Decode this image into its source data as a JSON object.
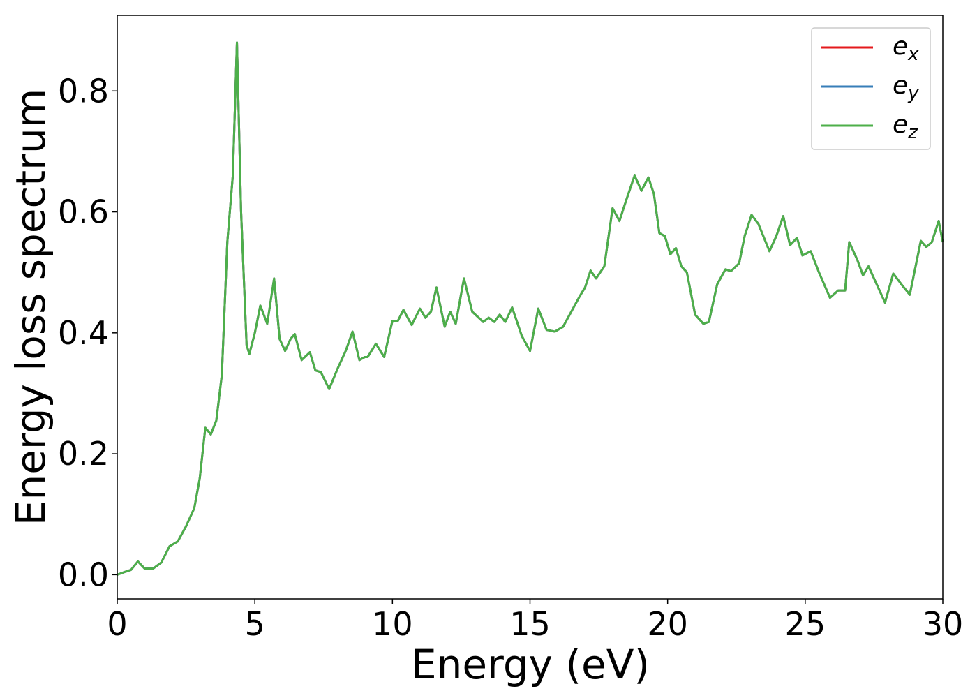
{
  "chart_data": {
    "type": "line",
    "xlabel": "Energy (eV)",
    "ylabel": "Energy loss spectrum",
    "xlim": [
      0,
      30
    ],
    "ylim": [
      -0.04,
      0.925
    ],
    "xticks": [
      0,
      5,
      10,
      15,
      20,
      25,
      30
    ],
    "yticks": [
      {
        "value": 0,
        "label": "0.0"
      },
      0.2,
      0.4,
      0.6,
      0.8
    ],
    "legend": "upper right",
    "x": [
      0,
      0.3,
      0.5,
      0.75,
      1.0,
      1.3,
      1.6,
      1.9,
      2.2,
      2.5,
      2.8,
      3.0,
      3.2,
      3.4,
      3.6,
      3.8,
      4.0,
      4.2,
      4.35,
      4.5,
      4.7,
      4.8,
      5.0,
      5.2,
      5.45,
      5.7,
      5.9,
      6.1,
      6.3,
      6.45,
      6.7,
      7.0,
      7.2,
      7.4,
      7.7,
      8.0,
      8.3,
      8.55,
      8.8,
      9.0,
      9.1,
      9.4,
      9.7,
      10.0,
      10.2,
      10.4,
      10.7,
      11.0,
      11.2,
      11.4,
      11.6,
      11.9,
      12.1,
      12.3,
      12.6,
      12.9,
      13.3,
      13.5,
      13.7,
      13.9,
      14.1,
      14.35,
      14.7,
      15.0,
      15.3,
      15.6,
      15.9,
      16.2,
      16.5,
      16.8,
      17.0,
      17.2,
      17.4,
      17.7,
      18.0,
      18.25,
      18.5,
      18.8,
      19.05,
      19.3,
      19.5,
      19.7,
      19.9,
      20.1,
      20.3,
      20.5,
      20.7,
      21.0,
      21.3,
      21.5,
      21.8,
      22.1,
      22.3,
      22.6,
      22.8,
      23.05,
      23.3,
      23.7,
      23.95,
      24.2,
      24.45,
      24.7,
      24.9,
      25.2,
      25.5,
      25.9,
      26.2,
      26.45,
      26.6,
      26.9,
      27.1,
      27.3,
      27.7,
      27.9,
      28.2,
      28.5,
      28.8,
      29.2,
      29.4,
      29.6,
      29.85,
      30.0
    ],
    "series": [
      {
        "name": "ex",
        "color": "#e41a1c",
        "values": [
          0.0,
          0.005,
          0.008,
          0.022,
          0.01,
          0.01,
          0.02,
          0.047,
          0.055,
          0.08,
          0.11,
          0.16,
          0.243,
          0.232,
          0.255,
          0.33,
          0.55,
          0.66,
          0.88,
          0.6,
          0.38,
          0.365,
          0.4,
          0.445,
          0.415,
          0.49,
          0.39,
          0.37,
          0.39,
          0.398,
          0.355,
          0.368,
          0.338,
          0.335,
          0.307,
          0.34,
          0.37,
          0.402,
          0.355,
          0.36,
          0.36,
          0.382,
          0.36,
          0.42,
          0.42,
          0.438,
          0.413,
          0.44,
          0.425,
          0.435,
          0.475,
          0.41,
          0.435,
          0.415,
          0.49,
          0.435,
          0.418,
          0.425,
          0.418,
          0.43,
          0.418,
          0.442,
          0.395,
          0.37,
          0.44,
          0.405,
          0.402,
          0.41,
          0.435,
          0.46,
          0.475,
          0.503,
          0.49,
          0.51,
          0.606,
          0.585,
          0.62,
          0.66,
          0.635,
          0.657,
          0.63,
          0.565,
          0.56,
          0.53,
          0.54,
          0.51,
          0.5,
          0.43,
          0.415,
          0.418,
          0.48,
          0.505,
          0.502,
          0.515,
          0.56,
          0.595,
          0.58,
          0.535,
          0.56,
          0.593,
          0.545,
          0.557,
          0.528,
          0.535,
          0.5,
          0.458,
          0.47,
          0.47,
          0.55,
          0.52,
          0.495,
          0.51,
          0.47,
          0.45,
          0.498,
          0.48,
          0.463,
          0.552,
          0.542,
          0.55,
          0.585,
          0.55
        ]
      },
      {
        "name": "ey",
        "color": "#377eb8",
        "values": [
          0.0,
          0.005,
          0.008,
          0.022,
          0.01,
          0.01,
          0.02,
          0.047,
          0.055,
          0.08,
          0.11,
          0.16,
          0.243,
          0.232,
          0.255,
          0.33,
          0.55,
          0.66,
          0.88,
          0.6,
          0.38,
          0.365,
          0.4,
          0.445,
          0.415,
          0.49,
          0.39,
          0.37,
          0.39,
          0.398,
          0.355,
          0.368,
          0.338,
          0.335,
          0.307,
          0.34,
          0.37,
          0.402,
          0.355,
          0.36,
          0.36,
          0.382,
          0.36,
          0.42,
          0.42,
          0.438,
          0.413,
          0.44,
          0.425,
          0.435,
          0.475,
          0.41,
          0.435,
          0.415,
          0.49,
          0.435,
          0.418,
          0.425,
          0.418,
          0.43,
          0.418,
          0.442,
          0.395,
          0.37,
          0.44,
          0.405,
          0.402,
          0.41,
          0.435,
          0.46,
          0.475,
          0.503,
          0.49,
          0.51,
          0.606,
          0.585,
          0.62,
          0.66,
          0.635,
          0.657,
          0.63,
          0.565,
          0.56,
          0.53,
          0.54,
          0.51,
          0.5,
          0.43,
          0.415,
          0.418,
          0.48,
          0.505,
          0.502,
          0.515,
          0.56,
          0.595,
          0.58,
          0.535,
          0.56,
          0.593,
          0.545,
          0.557,
          0.528,
          0.535,
          0.5,
          0.458,
          0.47,
          0.47,
          0.55,
          0.52,
          0.495,
          0.51,
          0.47,
          0.45,
          0.498,
          0.48,
          0.463,
          0.552,
          0.542,
          0.55,
          0.585,
          0.55
        ]
      },
      {
        "name": "ez",
        "color": "#4daf4a",
        "values": [
          0.0,
          0.005,
          0.008,
          0.022,
          0.01,
          0.01,
          0.02,
          0.047,
          0.055,
          0.08,
          0.11,
          0.16,
          0.243,
          0.232,
          0.255,
          0.33,
          0.55,
          0.66,
          0.88,
          0.6,
          0.38,
          0.365,
          0.4,
          0.445,
          0.415,
          0.49,
          0.39,
          0.37,
          0.39,
          0.398,
          0.355,
          0.368,
          0.338,
          0.335,
          0.307,
          0.34,
          0.37,
          0.402,
          0.355,
          0.36,
          0.36,
          0.382,
          0.36,
          0.42,
          0.42,
          0.438,
          0.413,
          0.44,
          0.425,
          0.435,
          0.475,
          0.41,
          0.435,
          0.415,
          0.49,
          0.435,
          0.418,
          0.425,
          0.418,
          0.43,
          0.418,
          0.442,
          0.395,
          0.37,
          0.44,
          0.405,
          0.402,
          0.41,
          0.435,
          0.46,
          0.475,
          0.503,
          0.49,
          0.51,
          0.606,
          0.585,
          0.62,
          0.66,
          0.635,
          0.657,
          0.63,
          0.565,
          0.56,
          0.53,
          0.54,
          0.51,
          0.5,
          0.43,
          0.415,
          0.418,
          0.48,
          0.505,
          0.502,
          0.515,
          0.56,
          0.595,
          0.58,
          0.535,
          0.56,
          0.593,
          0.545,
          0.557,
          0.528,
          0.535,
          0.5,
          0.458,
          0.47,
          0.47,
          0.55,
          0.52,
          0.495,
          0.51,
          0.47,
          0.45,
          0.498,
          0.48,
          0.463,
          0.552,
          0.542,
          0.55,
          0.585,
          0.55
        ]
      }
    ]
  }
}
